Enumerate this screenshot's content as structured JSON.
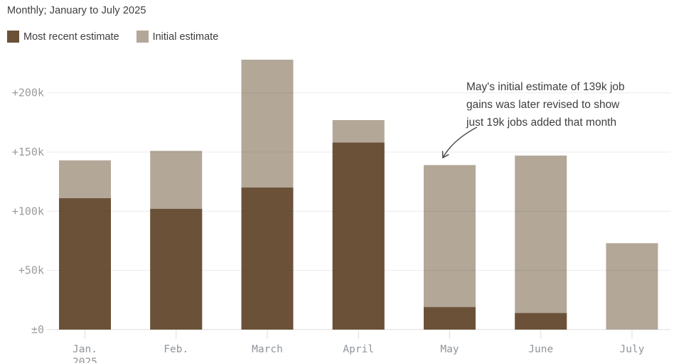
{
  "header": {
    "title": "Monthly; January to July 2025"
  },
  "legend": [
    {
      "label": "Most recent estimate",
      "color": "#6a5138"
    },
    {
      "label": "Initial estimate",
      "color": "#b3a798"
    }
  ],
  "annotation": {
    "lines": [
      "May's initial estimate of 139k job",
      "gains was later revised to show",
      "just 19k jobs added that month"
    ]
  },
  "chart_data": {
    "type": "bar",
    "categories": [
      "Jan.",
      "Feb.",
      "March",
      "April",
      "May",
      "June",
      "July"
    ],
    "category_sublabels": [
      "2025",
      "",
      "",
      "",
      "",
      "",
      ""
    ],
    "series": [
      {
        "name": "Most recent estimate",
        "color": "#6a5138",
        "values": [
          111,
          102,
          120,
          158,
          19,
          14,
          null
        ]
      },
      {
        "name": "Initial estimate",
        "color": "#b3a798",
        "values": [
          143,
          151,
          228,
          177,
          139,
          147,
          73
        ]
      }
    ],
    "y_ticks": [
      {
        "label": "+200k",
        "value": 200
      },
      {
        "label": "+150k",
        "value": 150
      },
      {
        "label": "+100k",
        "value": 100
      },
      {
        "label": "+50k",
        "value": 50
      },
      {
        "label": "±0",
        "value": 0
      }
    ],
    "ylim": [
      0,
      235
    ],
    "xlabel": "",
    "ylabel": "",
    "grid": true,
    "legend_position": "top-left",
    "bar_style": "overlaid",
    "colors": {
      "gridline": "rgba(60,60,60,0.10)",
      "baseline": "#dedede",
      "x_tick": "#dcdcdc",
      "y_label": "#9c9c9c",
      "x_label": "#8f949a",
      "annotation_arrow": "#4a4a4a"
    }
  }
}
